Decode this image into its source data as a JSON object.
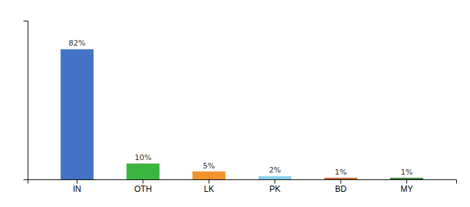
{
  "chart_data": {
    "type": "bar",
    "categories": [
      "IN",
      "OTH",
      "LK",
      "PK",
      "BD",
      "MY"
    ],
    "values": [
      82,
      10,
      5,
      2,
      1,
      1
    ],
    "value_labels": [
      "82%",
      "10%",
      "5%",
      "2%",
      "1%",
      "1%"
    ],
    "colors": [
      "#4472c4",
      "#3cb540",
      "#f0932b",
      "#87ceeb",
      "#c0632b",
      "#3a7d3a"
    ],
    "ylim": [
      0,
      100
    ],
    "data_labels": true,
    "tick_labels": "x"
  }
}
